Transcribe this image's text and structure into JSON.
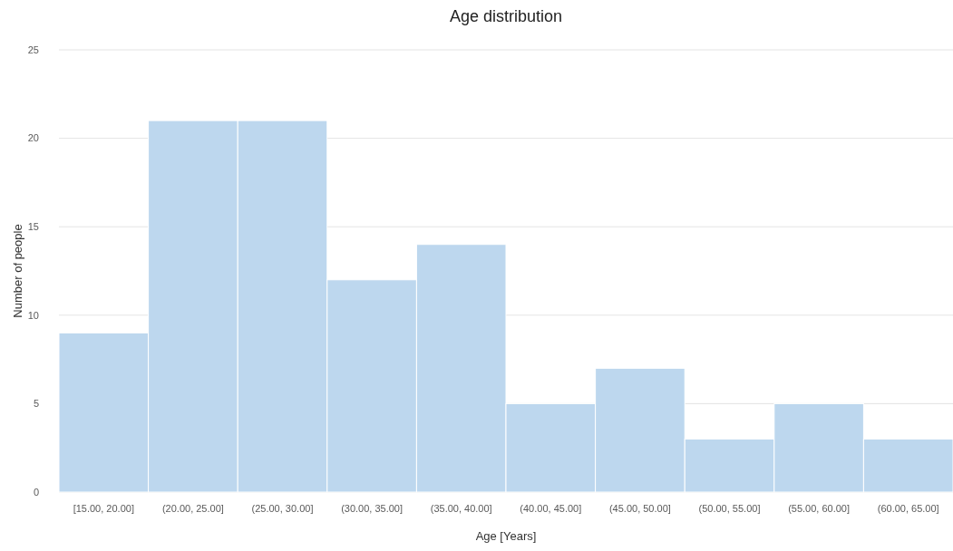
{
  "chart_data": {
    "type": "bar",
    "title": "Age distribution",
    "xlabel": "Age [Years]",
    "ylabel": "Number of people",
    "categories": [
      "[15.00, 20.00]",
      "(20.00, 25.00]",
      "(25.00, 30.00]",
      "(30.00, 35.00]",
      "(35.00, 40.00]",
      "(40.00, 45.00]",
      "(45.00, 50.00]",
      "(50.00, 55.00]",
      "(55.00, 60.00]",
      "(60.00, 65.00]"
    ],
    "values": [
      9,
      21,
      21,
      12,
      14,
      5,
      7,
      3,
      5,
      3
    ],
    "color": "#bdd7ee",
    "ylim": [
      0,
      25
    ],
    "yticks": [
      0,
      5,
      10,
      15,
      20,
      25
    ],
    "grid": "y"
  }
}
